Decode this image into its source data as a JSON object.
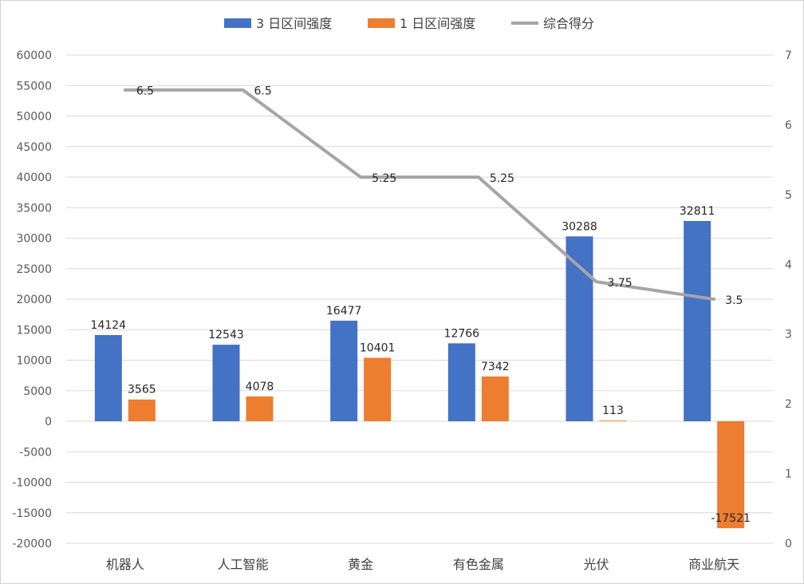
{
  "chart_data": {
    "type": "bar",
    "title": "",
    "categories": [
      "机器人",
      "人工智能",
      "黄金",
      "有色金属",
      "光伏",
      "商业航天"
    ],
    "series": [
      {
        "name": "3 日区间强度",
        "type": "bar",
        "axis": "left",
        "color": "#4472C4",
        "values": [
          14124,
          12543,
          16477,
          12766,
          30288,
          32811
        ]
      },
      {
        "name": "1 日区间强度",
        "type": "bar",
        "axis": "left",
        "color": "#ED7D31",
        "values": [
          3565,
          4078,
          10401,
          7342,
          113,
          -17521
        ]
      },
      {
        "name": "综合得分",
        "type": "line",
        "axis": "right",
        "color": "#A5A5A5",
        "values": [
          6.5,
          6.5,
          5.25,
          5.25,
          3.75,
          3.5
        ]
      }
    ],
    "y_left": {
      "min": -20000,
      "max": 60000,
      "step": 5000
    },
    "y_right": {
      "min": 0,
      "max": 7,
      "step": 1
    },
    "grid": true,
    "legend_position": "top"
  }
}
